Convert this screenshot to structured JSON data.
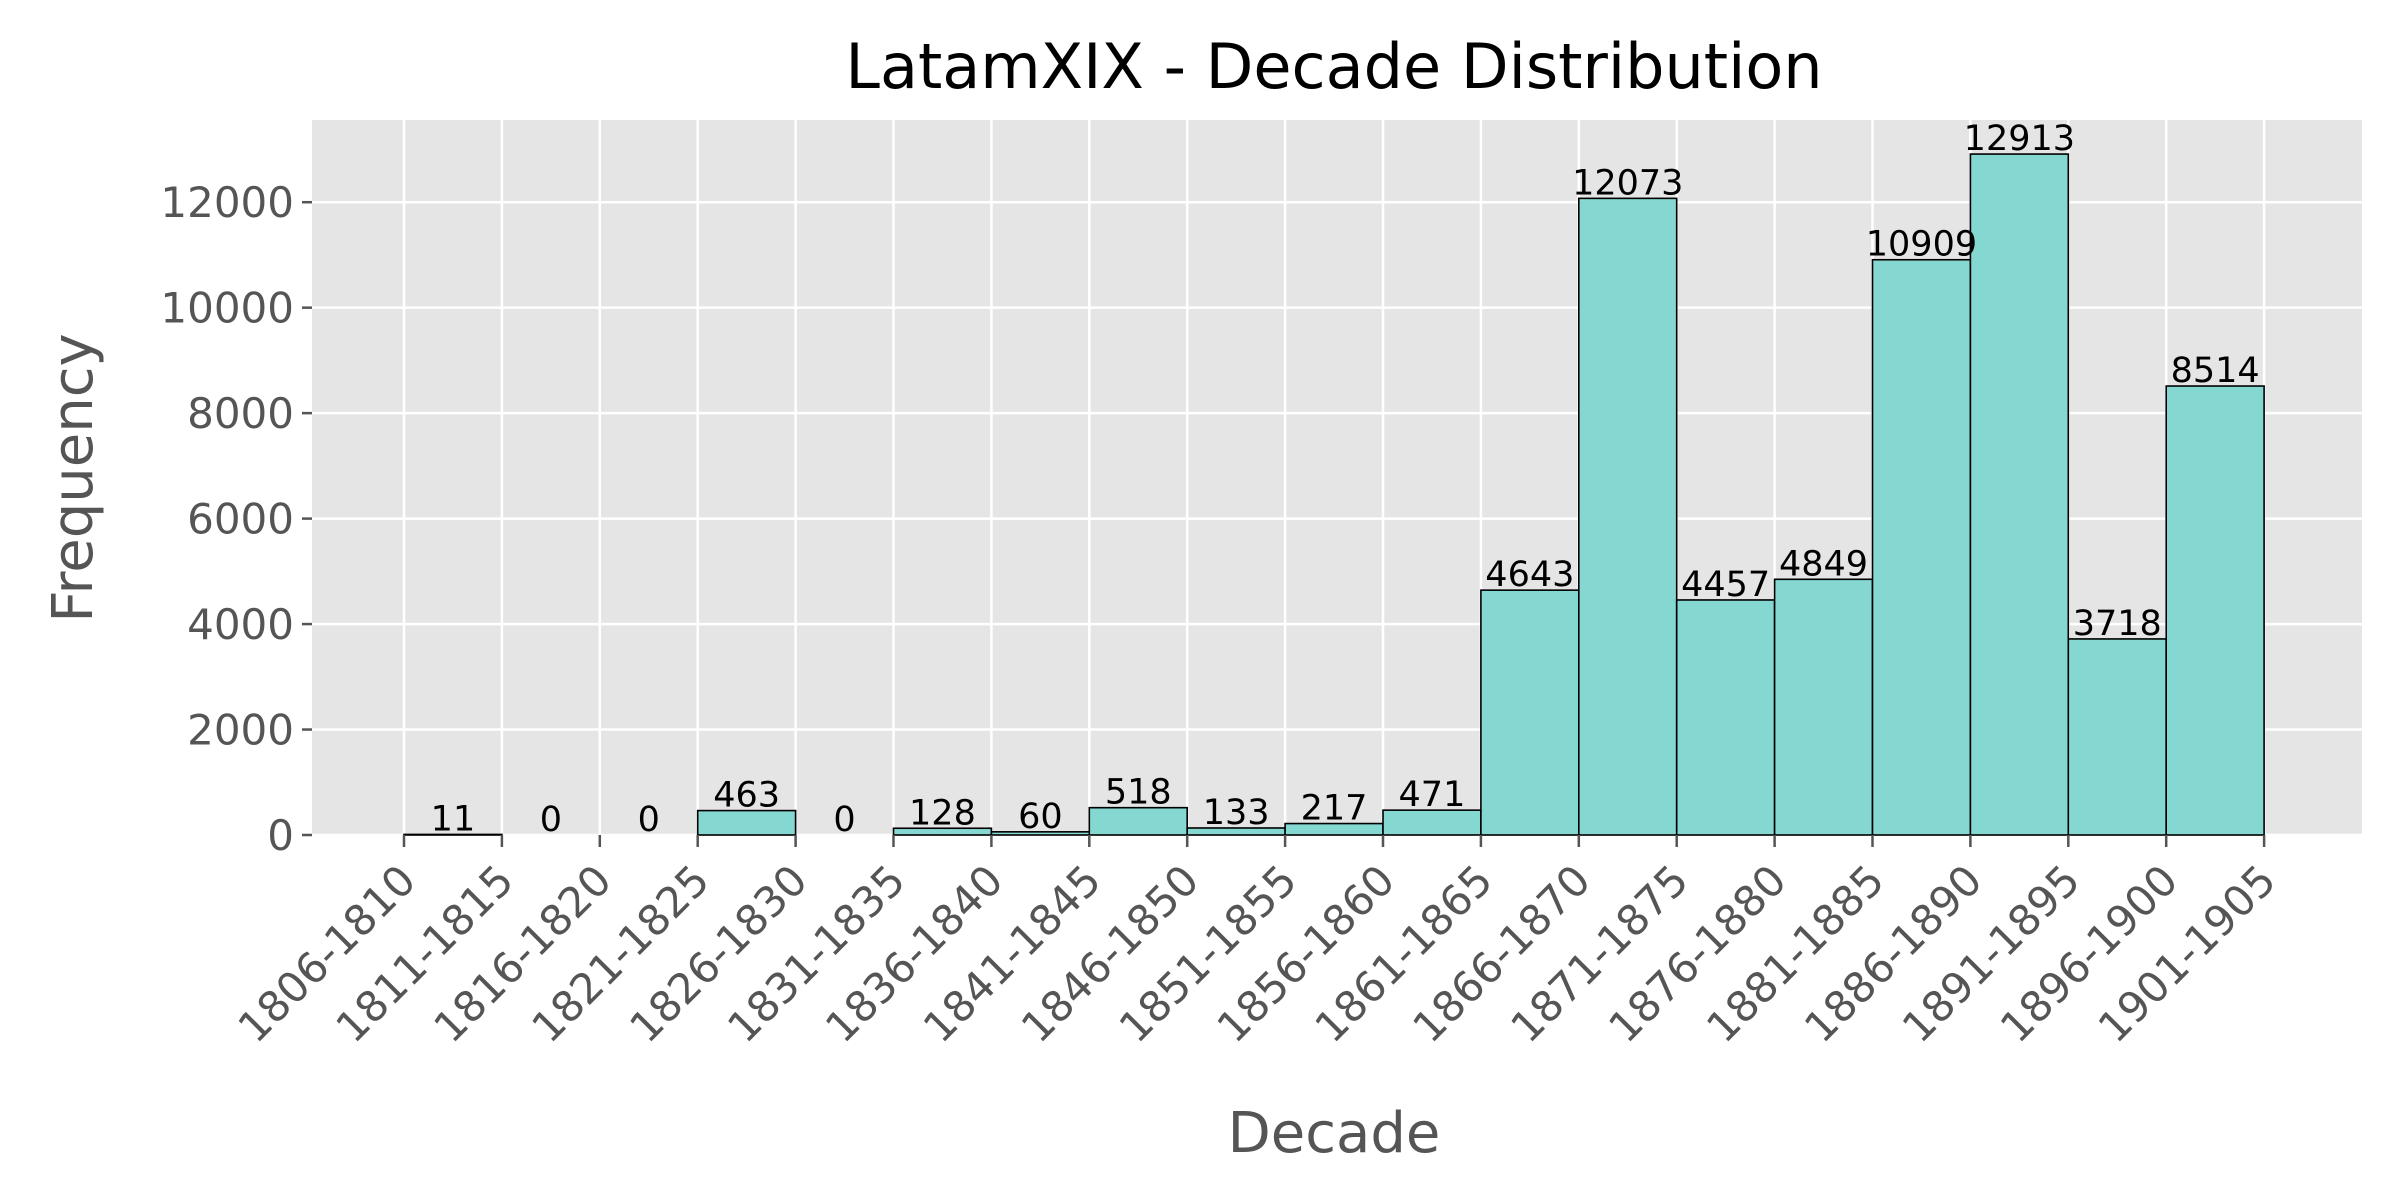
{
  "chart_data": {
    "type": "bar",
    "title": "LatamXIX - Decade Distribution",
    "xlabel": "Decade",
    "ylabel": "Frequency",
    "categories": [
      "1806-1810",
      "1811-1815",
      "1816-1820",
      "1821-1825",
      "1826-1830",
      "1831-1835",
      "1836-1840",
      "1841-1845",
      "1846-1850",
      "1851-1855",
      "1856-1860",
      "1861-1865",
      "1866-1870",
      "1871-1875",
      "1876-1880",
      "1881-1885",
      "1886-1890",
      "1891-1895",
      "1896-1900",
      "1901-1905"
    ],
    "values": [
      11,
      0,
      0,
      463,
      0,
      128,
      60,
      518,
      133,
      217,
      471,
      4643,
      12073,
      4457,
      4849,
      10909,
      12913,
      3718,
      8514,
      null
    ],
    "value_labels": [
      "11",
      "0",
      "0",
      "463",
      "0",
      "128",
      "60",
      "518",
      "133",
      "217",
      "471",
      "4643",
      "12073",
      "4457",
      "4849",
      "10909",
      "12913",
      "3718",
      "8514",
      ""
    ],
    "yticks": [
      0,
      2000,
      4000,
      6000,
      8000,
      10000,
      12000
    ],
    "ylim": [
      0,
      13559
    ],
    "grid": true,
    "style": "ggplot",
    "colors": {
      "bar_fill": "#85D7D1",
      "bar_edge": "#000000",
      "plot_background": "#E5E5E5",
      "grid": "#FFFFFF",
      "tick_text": "#555555",
      "title_text": "#000000"
    }
  }
}
